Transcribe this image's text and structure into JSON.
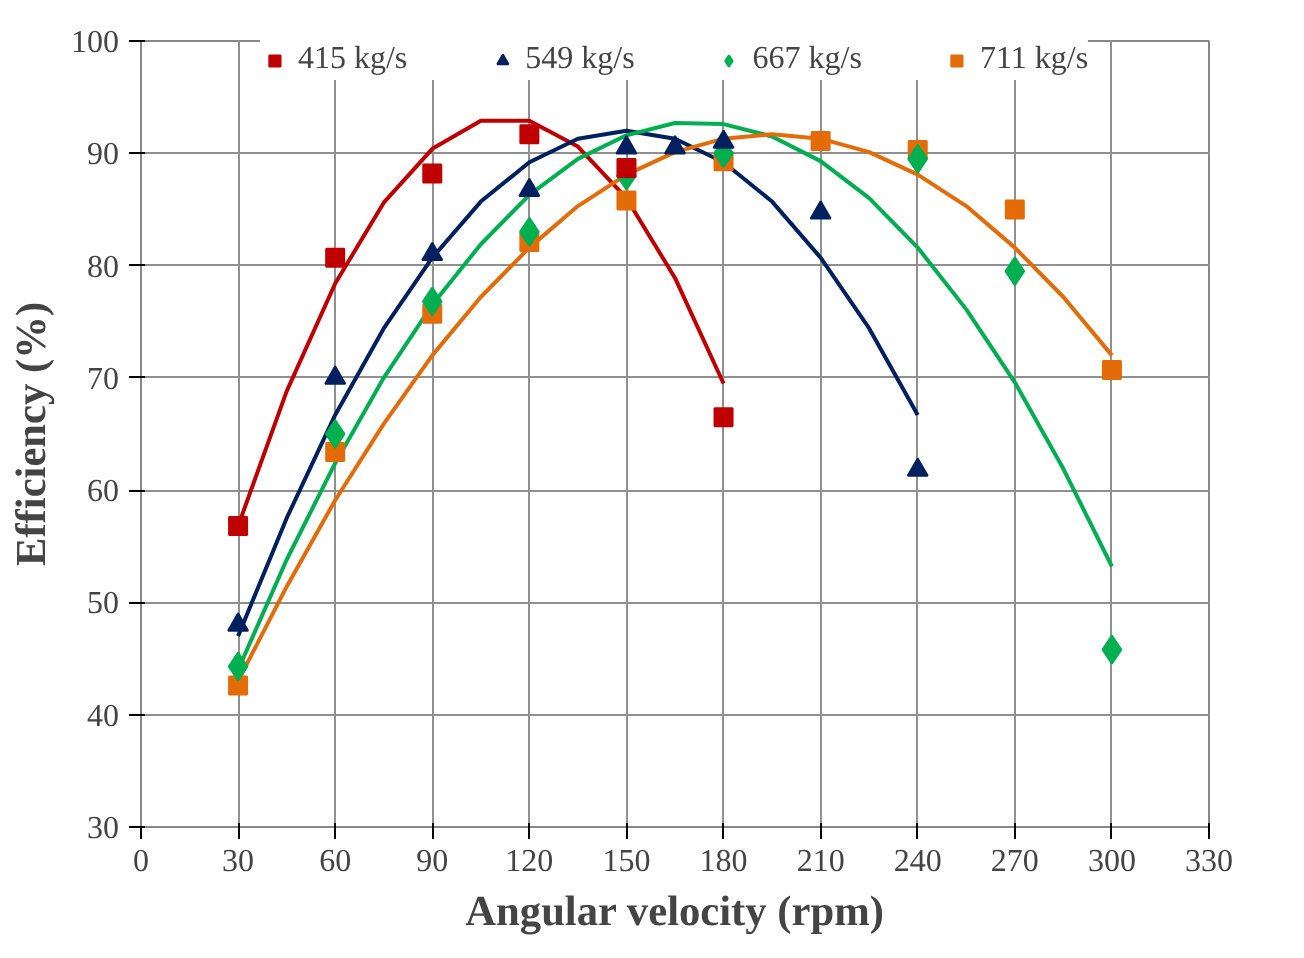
{
  "chart_data": {
    "type": "scatter",
    "xlabel": "Angular velocity (rpm)",
    "ylabel": "Efficiency (%)",
    "xlim": [
      0,
      330
    ],
    "ylim": [
      30,
      100
    ],
    "xticks": [
      0,
      30,
      60,
      90,
      120,
      150,
      180,
      210,
      240,
      270,
      300,
      330
    ],
    "yticks": [
      30,
      40,
      50,
      60,
      70,
      80,
      90,
      100
    ],
    "grid": true,
    "legend": "top",
    "series": [
      {
        "name": "415 kg/s",
        "color": "#c00000",
        "marker": "square",
        "x": [
          30,
          60,
          90,
          120,
          150,
          180
        ],
        "values": [
          56.8,
          80.7,
          88.2,
          91.7,
          88.7,
          66.5
        ]
      },
      {
        "name": "549 kg/s",
        "color": "#002060",
        "marker": "triangle",
        "x": [
          30,
          60,
          90,
          120,
          150,
          165,
          180,
          210,
          240
        ],
        "values": [
          48,
          70,
          81,
          86.7,
          90.5,
          90.5,
          91,
          84.7,
          61.8
        ]
      },
      {
        "name": "667 kg/s",
        "color": "#00b050",
        "marker": "diamond",
        "x": [
          30,
          60,
          90,
          120,
          150,
          180,
          240,
          270,
          300
        ],
        "values": [
          44.3,
          65,
          76.8,
          83,
          88,
          90,
          89.5,
          79.5,
          45.8
        ]
      },
      {
        "name": "711 kg/s",
        "color": "#e36c09",
        "marker": "square",
        "x": [
          30,
          60,
          90,
          120,
          150,
          180,
          210,
          240,
          270,
          300
        ],
        "values": [
          42.6,
          63.4,
          75.7,
          82.1,
          85.8,
          89.3,
          91.1,
          90.3,
          85,
          70.7
        ]
      },
      {
        "type": "line",
        "color": "#c00000",
        "marker": "none",
        "x": [
          30,
          45,
          60,
          75,
          90,
          105,
          120,
          135,
          150,
          165,
          180
        ],
        "values": [
          56.8,
          68.8,
          78.4,
          85.6,
          90.4,
          92.9,
          92.9,
          90.6,
          86.0,
          78.9,
          69.5
        ]
      },
      {
        "type": "line",
        "color": "#002060",
        "marker": "none",
        "x": [
          30,
          45,
          60,
          75,
          90,
          105,
          120,
          135,
          150,
          165,
          180,
          195,
          210,
          225,
          240
        ],
        "values": [
          47,
          57.5,
          66.7,
          74.4,
          80.7,
          85.7,
          89.2,
          91.3,
          92,
          91.3,
          89.2,
          85.7,
          80.7,
          74.4,
          66.7
        ]
      },
      {
        "type": "line",
        "color": "#00b050",
        "marker": "none",
        "x": [
          30,
          45,
          60,
          75,
          90,
          105,
          120,
          135,
          150,
          165,
          180,
          195,
          210,
          225,
          240,
          255,
          270,
          285,
          300
        ],
        "values": [
          44.0,
          53.8,
          62.4,
          70.0,
          76.5,
          81.9,
          86.3,
          89.5,
          91.6,
          92.7,
          92.6,
          91.5,
          89.3,
          86.0,
          81.6,
          76.1,
          69.6,
          61.9,
          53.2
        ]
      },
      {
        "type": "line",
        "color": "#e36c09",
        "marker": "none",
        "x": [
          30,
          45,
          60,
          75,
          90,
          105,
          120,
          135,
          150,
          165,
          180,
          195,
          210,
          225,
          240,
          255,
          270,
          285,
          300
        ],
        "values": [
          43.0,
          51.4,
          59.1,
          65.9,
          72.0,
          77.2,
          81.6,
          85.3,
          88.1,
          90.1,
          91.3,
          91.7,
          91.3,
          90.1,
          88.1,
          85.3,
          81.6,
          77.2,
          72.0
        ]
      }
    ]
  }
}
